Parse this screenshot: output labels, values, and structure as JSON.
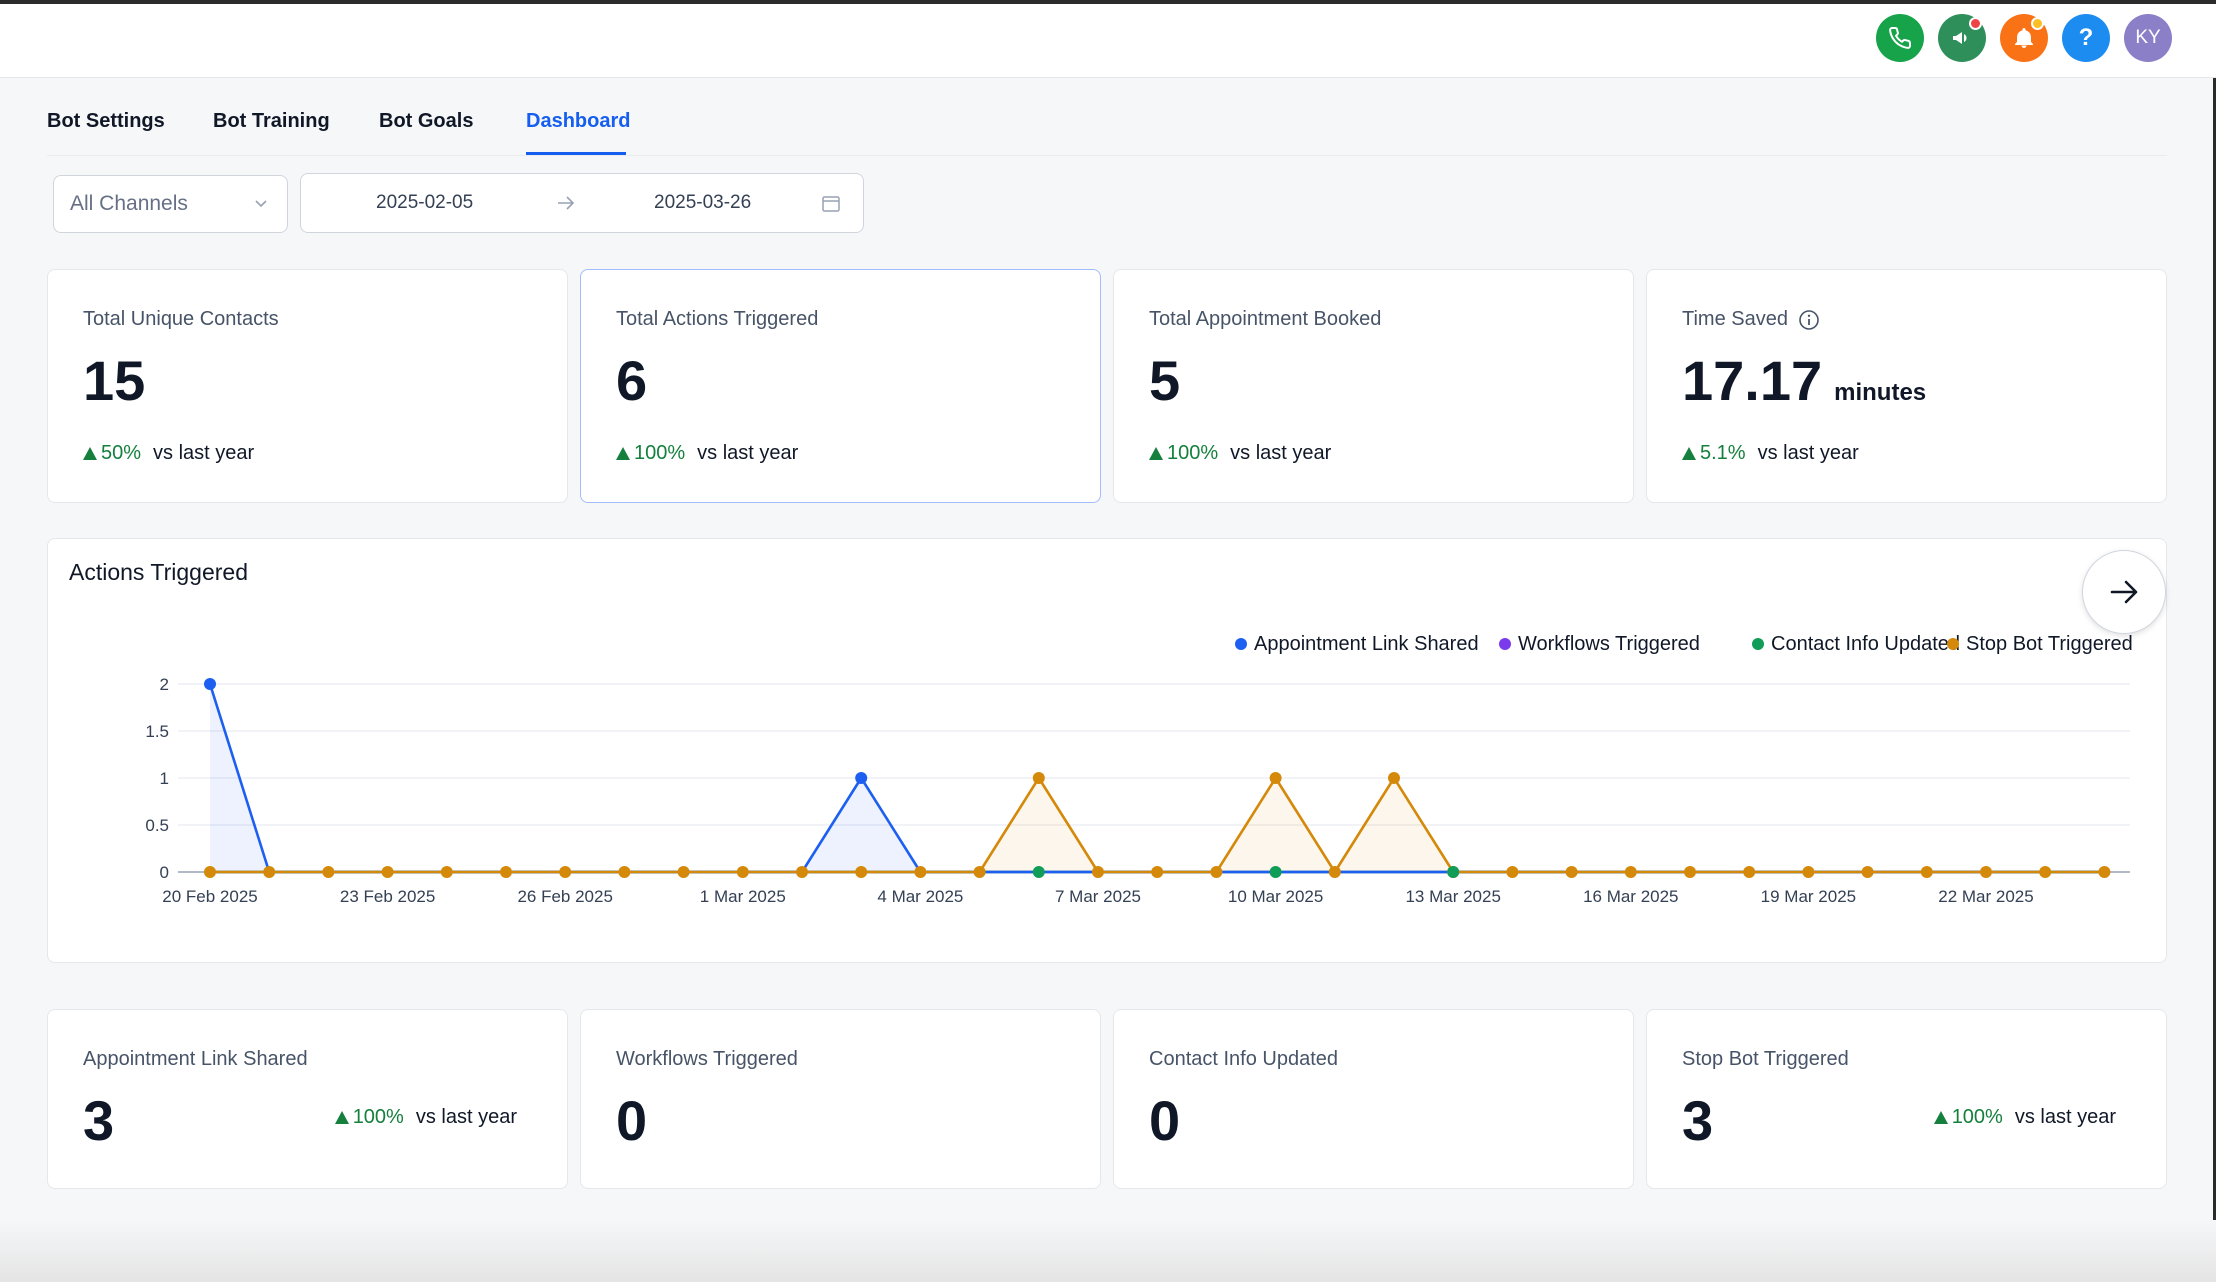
{
  "topbar": {
    "icons": [
      {
        "name": "phone-icon",
        "bg": "#16a34a"
      },
      {
        "name": "megaphone-icon",
        "bg": "#2f8f5b",
        "dot": "#ef4444"
      },
      {
        "name": "bell-icon",
        "bg": "#f97316",
        "dot": "#fbbf24"
      },
      {
        "name": "help-icon",
        "bg": "#1d8cf0"
      },
      {
        "name": "avatar",
        "bg": "#8b7fc7"
      }
    ],
    "help_label": "?",
    "avatar_initials": "KY"
  },
  "tabs": [
    {
      "label": "Bot Settings",
      "active": false
    },
    {
      "label": "Bot Training",
      "active": false
    },
    {
      "label": "Bot Goals",
      "active": false
    },
    {
      "label": "Dashboard",
      "active": true
    }
  ],
  "filters": {
    "channel": "All Channels",
    "date_start": "2025-02-05",
    "date_end": "2025-03-26"
  },
  "stats": [
    {
      "title": "Total Unique Contacts",
      "value": "15",
      "delta": "50%",
      "delta_label": "vs last year"
    },
    {
      "title": "Total Actions Triggered",
      "value": "6",
      "delta": "100%",
      "delta_label": "vs last year"
    },
    {
      "title": "Total Appointment Booked",
      "value": "5",
      "delta": "100%",
      "delta_label": "vs last year"
    },
    {
      "title": "Time Saved",
      "value": "17.17",
      "unit": "minutes",
      "delta": "5.1%",
      "delta_label": "vs last year"
    }
  ],
  "chart_data": {
    "type": "line",
    "title": "Actions Triggered",
    "xlabel": "",
    "ylabel": "",
    "ylim": [
      0,
      2
    ],
    "yticks": [
      "0",
      "0.5",
      "1",
      "1.5",
      "2"
    ],
    "legend_position": "top-right",
    "grid": true,
    "x": [
      "20 Feb 2025",
      "21 Feb 2025",
      "22 Feb 2025",
      "23 Feb 2025",
      "24 Feb 2025",
      "25 Feb 2025",
      "26 Feb 2025",
      "27 Feb 2025",
      "28 Feb 2025",
      "1 Mar 2025",
      "2 Mar 2025",
      "3 Mar 2025",
      "4 Mar 2025",
      "5 Mar 2025",
      "6 Mar 2025",
      "7 Mar 2025",
      "8 Mar 2025",
      "9 Mar 2025",
      "10 Mar 2025",
      "11 Mar 2025",
      "12 Mar 2025",
      "13 Mar 2025",
      "14 Mar 2025",
      "15 Mar 2025",
      "16 Mar 2025",
      "17 Mar 2025",
      "18 Mar 2025",
      "19 Mar 2025",
      "20 Mar 2025",
      "21 Mar 2025",
      "22 Mar 2025",
      "23 Mar 2025",
      "24 Mar 2025"
    ],
    "x_tick_labels": [
      "20 Feb 2025",
      "23 Feb 2025",
      "26 Feb 2025",
      "1 Mar 2025",
      "4 Mar 2025",
      "7 Mar 2025",
      "10 Mar 2025",
      "13 Mar 2025",
      "16 Mar 2025",
      "19 Mar 2025",
      "22 Mar 2025"
    ],
    "series": [
      {
        "name": "Appointment Link Shared",
        "color": "#1d5ff0",
        "values": [
          2,
          0,
          0,
          0,
          0,
          0,
          0,
          0,
          0,
          0,
          0,
          1,
          0,
          0,
          0,
          0,
          0,
          0,
          0,
          0,
          0,
          0,
          0,
          0,
          0,
          0,
          0,
          0,
          0,
          0,
          0,
          0,
          0
        ]
      },
      {
        "name": "Workflows Triggered",
        "color": "#7c3aed",
        "values": [
          0,
          0,
          0,
          0,
          0,
          0,
          0,
          0,
          0,
          0,
          0,
          0,
          0,
          0,
          0,
          0,
          0,
          0,
          0,
          0,
          0,
          0,
          0,
          0,
          0,
          0,
          0,
          0,
          0,
          0,
          0,
          0,
          0
        ]
      },
      {
        "name": "Contact Info Updated",
        "color": "#0f9d58",
        "values": [
          0,
          0,
          0,
          0,
          0,
          0,
          0,
          0,
          0,
          0,
          0,
          0,
          0,
          0,
          0,
          0,
          0,
          0,
          0,
          0,
          0,
          0,
          0,
          0,
          0,
          0,
          0,
          0,
          0,
          0,
          0,
          0,
          0
        ]
      },
      {
        "name": "Stop Bot Triggered",
        "color": "#d4890a",
        "values": [
          0,
          0,
          0,
          0,
          0,
          0,
          0,
          0,
          0,
          0,
          0,
          0,
          0,
          0,
          1,
          0,
          0,
          0,
          1,
          0,
          1,
          0,
          0,
          0,
          0,
          0,
          0,
          0,
          0,
          0,
          0,
          0,
          0
        ]
      }
    ]
  },
  "breakdown": [
    {
      "title": "Appointment Link Shared",
      "value": "3",
      "delta": "100%",
      "delta_label": "vs last year"
    },
    {
      "title": "Workflows Triggered",
      "value": "0"
    },
    {
      "title": "Contact Info Updated",
      "value": "0"
    },
    {
      "title": "Stop Bot Triggered",
      "value": "3",
      "delta": "100%",
      "delta_label": "vs last year"
    }
  ]
}
